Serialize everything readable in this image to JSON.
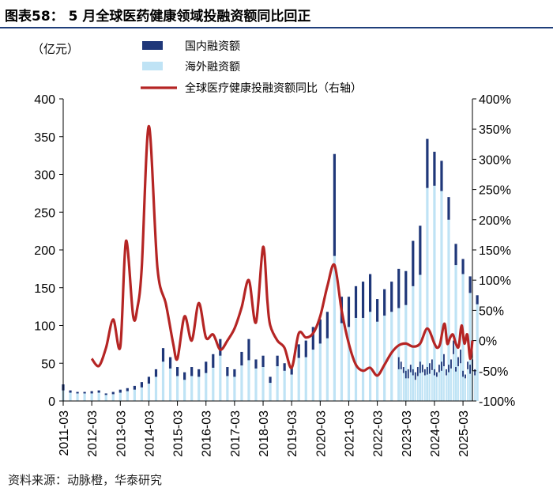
{
  "page": {
    "title": "图表58：  5 月全球医药健康领域投融资额同比回正",
    "source": "资料来源：动脉橙，华泰研究"
  },
  "colors": {
    "domestic": "#1f3779",
    "overseas": "#bfe3f5",
    "yoy_line": "#b52524",
    "rule": "#1f3e7a"
  },
  "chart_data": {
    "type": "bar+line",
    "title": "5 月全球医药健康领域投融资额同比回正",
    "ylabel_left": "（亿元）",
    "ylim_left": [
      0,
      400
    ],
    "yticks_left": [
      "0",
      "50",
      "100",
      "150",
      "200",
      "250",
      "300",
      "350",
      "400"
    ],
    "ylim_right": [
      -100,
      400
    ],
    "yticks_right": [
      "-100%",
      "-50%",
      "0%",
      "50%",
      "100%",
      "150%",
      "200%",
      "250%",
      "300%",
      "350%",
      "400%"
    ],
    "xlim": [
      2011.0,
      2025.33
    ],
    "xticks": [
      "2011-03",
      "2012-03",
      "2013-03",
      "2014-03",
      "2015-03",
      "2016-03",
      "2017-03",
      "2018-03",
      "2019-03",
      "2020-03",
      "2021-03",
      "2022-03",
      "2023-03",
      "2024-03",
      "2025-03"
    ],
    "legend": [
      "国内融资额",
      "海外融资额",
      "全球医疗健康投融资额同比（右轴）"
    ],
    "bars_quarterly": {
      "start": 2011.0,
      "step": 0.25,
      "total": [
        22,
        14,
        12,
        12,
        13,
        14,
        10,
        12,
        15,
        17,
        20,
        25,
        32,
        42,
        70,
        58,
        45,
        38,
        45,
        42,
        52,
        62,
        82,
        45,
        42,
        65,
        82,
        55,
        60,
        32,
        60,
        50,
        45,
        75,
        80,
        98,
        108,
        118,
        327,
        138,
        138,
        152,
        158,
        168,
        135,
        148,
        158,
        175,
        172,
        212,
        232,
        347,
        330,
        318,
        270,
        208,
        188,
        165,
        140
      ],
      "domestic": [
        8,
        3,
        2,
        2,
        3,
        3,
        2,
        3,
        4,
        4,
        5,
        7,
        9,
        10,
        18,
        15,
        12,
        10,
        12,
        10,
        15,
        18,
        22,
        12,
        10,
        18,
        28,
        12,
        15,
        8,
        14,
        10,
        10,
        18,
        22,
        30,
        32,
        35,
        135,
        35,
        40,
        42,
        48,
        50,
        30,
        35,
        40,
        52,
        45,
        60,
        65,
        65,
        45,
        40,
        30,
        28,
        20,
        22,
        12
      ]
    },
    "bars_monthly": {
      "start": 2022.75,
      "step": 0.0833,
      "total": [
        58,
        52,
        45,
        40,
        42,
        48,
        42,
        38,
        45,
        52,
        48,
        42,
        45,
        50,
        55,
        42,
        38,
        48,
        52,
        62,
        42,
        48,
        55,
        80,
        45,
        58,
        68,
        40,
        35,
        52,
        48,
        55,
        42
      ],
      "domestic": [
        16,
        10,
        8,
        10,
        12,
        10,
        8,
        10,
        12,
        15,
        10,
        8,
        10,
        14,
        14,
        8,
        6,
        10,
        12,
        16,
        8,
        10,
        12,
        18,
        6,
        12,
        18,
        8,
        5,
        10,
        12,
        15,
        8
      ]
    },
    "yoy_line": {
      "x": [
        2012.0,
        2012.25,
        2012.5,
        2012.75,
        2013.0,
        2013.2,
        2013.45,
        2013.6,
        2013.75,
        2014.0,
        2014.3,
        2014.6,
        2014.85,
        2015.0,
        2015.25,
        2015.5,
        2015.75,
        2016.0,
        2016.25,
        2016.5,
        2016.75,
        2017.0,
        2017.25,
        2017.5,
        2017.75,
        2018.0,
        2018.15,
        2018.25,
        2018.5,
        2018.75,
        2019.0,
        2019.25,
        2019.5,
        2019.75,
        2020.0,
        2020.25,
        2020.5,
        2020.75,
        2021.0,
        2021.25,
        2021.5,
        2021.75,
        2022.0,
        2022.25,
        2022.5,
        2022.75,
        2023.0,
        2023.25,
        2023.5,
        2023.75,
        2024.0,
        2024.1,
        2024.2,
        2024.35,
        2024.45,
        2024.55,
        2024.65,
        2024.75,
        2024.85,
        2024.95,
        2025.05,
        2025.15,
        2025.25,
        2025.33
      ],
      "y": [
        -30,
        -42,
        -12,
        35,
        -10,
        165,
        40,
        55,
        120,
        355,
        120,
        60,
        -5,
        -30,
        40,
        0,
        62,
        5,
        10,
        -15,
        0,
        20,
        55,
        100,
        30,
        155,
        65,
        25,
        0,
        -12,
        -45,
        12,
        5,
        12,
        40,
        90,
        125,
        50,
        -5,
        -40,
        -50,
        -45,
        -58,
        -40,
        -20,
        -8,
        -5,
        -10,
        -5,
        20,
        -5,
        -12,
        -5,
        28,
        -5,
        5,
        10,
        -5,
        -10,
        25,
        -5,
        10,
        -30,
        0
      ]
    }
  }
}
